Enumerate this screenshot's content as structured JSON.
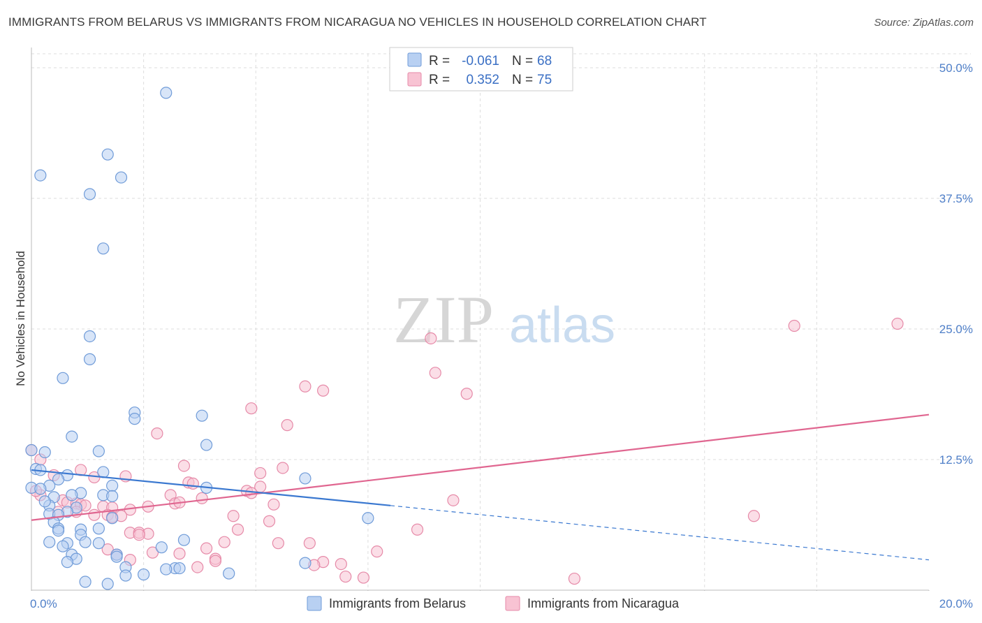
{
  "title": "IMMIGRANTS FROM BELARUS VS IMMIGRANTS FROM NICARAGUA NO VEHICLES IN HOUSEHOLD CORRELATION CHART",
  "source": "Source: ZipAtlas.com",
  "watermark": {
    "zip": "ZIP",
    "atlas": "atlas"
  },
  "colors": {
    "belarus_fill": "#b8d0f2",
    "belarus_stroke": "#6f9bd8",
    "belarus_line": "#3a78d0",
    "nicaragua_fill": "#f8c3d3",
    "nicaragua_stroke": "#e68aa8",
    "nicaragua_line": "#e06690",
    "tick_text": "#4f7fc8",
    "grid": "#dddddd"
  },
  "legend": {
    "rows": [
      {
        "r_label": "R =",
        "r_value": "-0.061",
        "n_label": "N =",
        "n_value": "68"
      },
      {
        "r_label": "R =",
        "r_value": "0.352",
        "n_label": "N =",
        "n_value": "75"
      }
    ]
  },
  "chart_data": {
    "type": "scatter",
    "title": "IMMIGRANTS FROM BELARUS VS IMMIGRANTS FROM NICARAGUA NO VEHICLES IN HOUSEHOLD CORRELATION CHART",
    "xlabel": "",
    "ylabel": "No Vehicles in Household",
    "xlim": [
      0,
      20
    ],
    "ylim": [
      0,
      50
    ],
    "x_tick_labels": [
      "0.0%",
      "20.0%"
    ],
    "y_tick_values": [
      12.5,
      25.0,
      37.5,
      50.0
    ],
    "y_tick_labels": [
      "12.5%",
      "25.0%",
      "37.5%",
      "50.0%"
    ],
    "grid": true,
    "legend_position": "top-center",
    "series": [
      {
        "name": "Immigrants from Belarus",
        "r": -0.061,
        "n": 68,
        "trend": {
          "x0": 0,
          "y0": 11.5,
          "x_solid_end": 8.0,
          "y_solid_end": 8.1,
          "x1": 20,
          "y1": 2.9
        },
        "points": [
          [
            3.0,
            47.6
          ],
          [
            1.7,
            41.7
          ],
          [
            0.2,
            39.7
          ],
          [
            2.0,
            39.5
          ],
          [
            1.3,
            37.9
          ],
          [
            1.6,
            32.7
          ],
          [
            1.3,
            24.3
          ],
          [
            1.3,
            22.1
          ],
          [
            0.7,
            20.3
          ],
          [
            2.3,
            17.0
          ],
          [
            3.8,
            16.7
          ],
          [
            2.3,
            16.4
          ],
          [
            0.9,
            14.7
          ],
          [
            3.9,
            13.9
          ],
          [
            0.0,
            13.4
          ],
          [
            1.5,
            13.3
          ],
          [
            0.3,
            13.2
          ],
          [
            0.1,
            11.6
          ],
          [
            0.2,
            11.5
          ],
          [
            1.6,
            11.3
          ],
          [
            0.8,
            11.0
          ],
          [
            6.1,
            10.7
          ],
          [
            0.6,
            10.6
          ],
          [
            0.4,
            10.0
          ],
          [
            1.8,
            10.0
          ],
          [
            0.0,
            9.8
          ],
          [
            0.2,
            9.7
          ],
          [
            3.9,
            9.8
          ],
          [
            1.1,
            9.3
          ],
          [
            0.9,
            9.1
          ],
          [
            1.6,
            9.1
          ],
          [
            1.8,
            9.0
          ],
          [
            0.5,
            8.9
          ],
          [
            0.4,
            8.1
          ],
          [
            0.3,
            8.5
          ],
          [
            1.0,
            7.9
          ],
          [
            0.8,
            7.5
          ],
          [
            0.4,
            7.3
          ],
          [
            0.6,
            7.2
          ],
          [
            1.8,
            6.9
          ],
          [
            7.5,
            6.9
          ],
          [
            0.5,
            6.5
          ],
          [
            0.6,
            5.9
          ],
          [
            1.1,
            5.8
          ],
          [
            1.5,
            5.9
          ],
          [
            0.6,
            5.7
          ],
          [
            1.1,
            5.3
          ],
          [
            0.4,
            4.6
          ],
          [
            0.8,
            4.5
          ],
          [
            1.2,
            4.6
          ],
          [
            1.5,
            4.5
          ],
          [
            3.4,
            4.8
          ],
          [
            0.7,
            4.2
          ],
          [
            2.9,
            4.1
          ],
          [
            1.9,
            3.4
          ],
          [
            0.9,
            3.4
          ],
          [
            1.9,
            3.2
          ],
          [
            1.0,
            3.0
          ],
          [
            0.8,
            2.7
          ],
          [
            6.1,
            2.6
          ],
          [
            2.1,
            2.2
          ],
          [
            3.2,
            2.1
          ],
          [
            3.0,
            2.0
          ],
          [
            3.3,
            2.1
          ],
          [
            2.1,
            1.4
          ],
          [
            2.5,
            1.5
          ],
          [
            4.4,
            1.6
          ],
          [
            1.2,
            0.8
          ],
          [
            1.7,
            0.6
          ]
        ]
      },
      {
        "name": "Immigrants from Nicaragua",
        "r": 0.352,
        "n": 75,
        "trend": {
          "x0": 0,
          "y0": 6.7,
          "x1": 20,
          "y1": 16.8
        },
        "points": [
          [
            17.0,
            25.3
          ],
          [
            19.3,
            25.5
          ],
          [
            8.9,
            24.1
          ],
          [
            9.0,
            20.8
          ],
          [
            6.1,
            19.5
          ],
          [
            6.5,
            19.1
          ],
          [
            9.7,
            18.8
          ],
          [
            4.9,
            17.4
          ],
          [
            5.7,
            15.8
          ],
          [
            2.8,
            15.0
          ],
          [
            0.0,
            13.4
          ],
          [
            0.2,
            12.5
          ],
          [
            3.4,
            11.9
          ],
          [
            5.6,
            11.7
          ],
          [
            1.1,
            11.5
          ],
          [
            5.1,
            11.2
          ],
          [
            0.5,
            11.0
          ],
          [
            2.1,
            10.9
          ],
          [
            1.4,
            10.8
          ],
          [
            3.5,
            10.3
          ],
          [
            3.6,
            10.2
          ],
          [
            5.1,
            9.9
          ],
          [
            4.8,
            9.5
          ],
          [
            4.9,
            9.3
          ],
          [
            3.1,
            9.1
          ],
          [
            0.2,
            9.1
          ],
          [
            3.8,
            8.8
          ],
          [
            9.4,
            8.6
          ],
          [
            0.7,
            8.6
          ],
          [
            0.8,
            8.4
          ],
          [
            1.0,
            8.3
          ],
          [
            1.1,
            8.2
          ],
          [
            1.2,
            8.1
          ],
          [
            3.2,
            8.3
          ],
          [
            3.3,
            8.4
          ],
          [
            5.4,
            8.2
          ],
          [
            2.6,
            8.0
          ],
          [
            1.6,
            8.0
          ],
          [
            1.8,
            7.9
          ],
          [
            2.2,
            7.7
          ],
          [
            0.6,
            7.5
          ],
          [
            1.0,
            7.5
          ],
          [
            1.7,
            7.2
          ],
          [
            1.8,
            7.0
          ],
          [
            2.0,
            7.1
          ],
          [
            4.5,
            7.1
          ],
          [
            16.1,
            7.1
          ],
          [
            1.4,
            7.2
          ],
          [
            5.3,
            6.6
          ],
          [
            8.6,
            5.8
          ],
          [
            2.2,
            5.5
          ],
          [
            2.4,
            5.5
          ],
          [
            2.6,
            5.4
          ],
          [
            2.4,
            5.3
          ],
          [
            4.6,
            5.8
          ],
          [
            4.3,
            4.6
          ],
          [
            6.2,
            4.5
          ],
          [
            5.5,
            4.5
          ],
          [
            3.9,
            4.0
          ],
          [
            1.7,
            3.9
          ],
          [
            2.7,
            3.6
          ],
          [
            3.3,
            3.5
          ],
          [
            7.7,
            3.7
          ],
          [
            1.9,
            3.4
          ],
          [
            4.1,
            3.0
          ],
          [
            2.2,
            2.9
          ],
          [
            4.1,
            2.8
          ],
          [
            6.5,
            2.7
          ],
          [
            6.9,
            2.5
          ],
          [
            3.7,
            2.2
          ],
          [
            6.3,
            2.4
          ],
          [
            7.4,
            1.2
          ],
          [
            7.0,
            1.3
          ],
          [
            12.1,
            1.1
          ],
          [
            0.1,
            9.5
          ]
        ]
      }
    ]
  }
}
